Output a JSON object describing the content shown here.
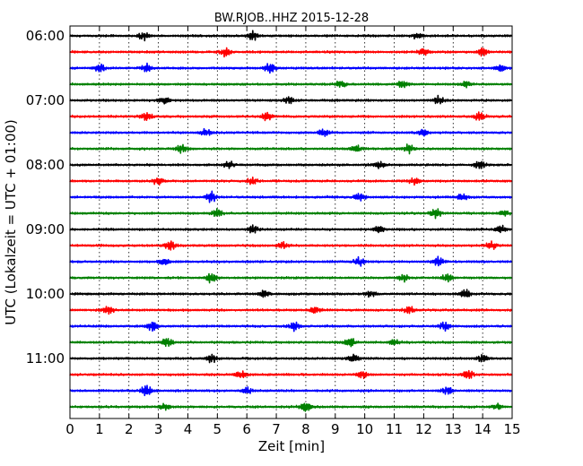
{
  "chart_data": {
    "type": "line",
    "title": "BW.RJOB..HHZ 2015-12-28",
    "xlabel": "Zeit  [min]",
    "ylabel": "UTC (Lokalzeit = UTC + 01:00)",
    "xlim": [
      0,
      15
    ],
    "x_ticks": [
      "0",
      "1",
      "2",
      "3",
      "4",
      "5",
      "6",
      "7",
      "8",
      "9",
      "10",
      "11",
      "12",
      "13",
      "14",
      "15"
    ],
    "y_tick_labels": [
      "06:00",
      "07:00",
      "08:00",
      "09:00",
      "10:00",
      "11:00"
    ],
    "grid": true,
    "start_time": "06:00",
    "trace_interval_min": 15,
    "trace_colors": [
      "#000000",
      "#ff0000",
      "#0000ff",
      "#008000"
    ],
    "series": [
      {
        "start": "06:00",
        "seed": 11,
        "color": "#000000",
        "bursts": [
          {
            "t": 2.5,
            "a": 0.9
          },
          {
            "t": 6.2,
            "a": 1.0
          },
          {
            "t": 11.8,
            "a": 0.8
          }
        ]
      },
      {
        "start": "06:15",
        "seed": 22,
        "color": "#ff0000",
        "bursts": [
          {
            "t": 5.3,
            "a": 1.0
          },
          {
            "t": 12.0,
            "a": 0.9
          },
          {
            "t": 14.0,
            "a": 0.9
          }
        ]
      },
      {
        "start": "06:30",
        "seed": 33,
        "color": "#0000ff",
        "bursts": [
          {
            "t": 1.0,
            "a": 1.0
          },
          {
            "t": 2.6,
            "a": 0.9
          },
          {
            "t": 6.8,
            "a": 1.2
          },
          {
            "t": 14.6,
            "a": 0.8
          }
        ]
      },
      {
        "start": "06:45",
        "seed": 44,
        "color": "#008000",
        "bursts": [
          {
            "t": 9.2,
            "a": 0.9
          },
          {
            "t": 11.3,
            "a": 0.8
          },
          {
            "t": 13.4,
            "a": 0.8
          }
        ]
      },
      {
        "start": "07:00",
        "seed": 55,
        "color": "#000000",
        "bursts": [
          {
            "t": 3.2,
            "a": 0.9
          },
          {
            "t": 7.4,
            "a": 0.8
          },
          {
            "t": 12.5,
            "a": 0.9
          }
        ]
      },
      {
        "start": "07:15",
        "seed": 66,
        "color": "#ff0000",
        "bursts": [
          {
            "t": 2.6,
            "a": 1.0
          },
          {
            "t": 6.7,
            "a": 1.0
          },
          {
            "t": 13.9,
            "a": 1.0
          }
        ]
      },
      {
        "start": "07:30",
        "seed": 77,
        "color": "#0000ff",
        "bursts": [
          {
            "t": 4.6,
            "a": 0.9
          },
          {
            "t": 8.6,
            "a": 0.9
          },
          {
            "t": 12.0,
            "a": 0.8
          }
        ]
      },
      {
        "start": "07:45",
        "seed": 88,
        "color": "#008000",
        "bursts": [
          {
            "t": 3.8,
            "a": 1.0
          },
          {
            "t": 9.7,
            "a": 0.8
          },
          {
            "t": 11.5,
            "a": 0.9
          }
        ]
      },
      {
        "start": "08:00",
        "seed": 99,
        "color": "#000000",
        "bursts": [
          {
            "t": 5.4,
            "a": 1.0
          },
          {
            "t": 10.5,
            "a": 0.8
          },
          {
            "t": 13.9,
            "a": 1.0
          }
        ]
      },
      {
        "start": "08:15",
        "seed": 110,
        "color": "#ff0000",
        "bursts": [
          {
            "t": 3.0,
            "a": 1.0
          },
          {
            "t": 6.2,
            "a": 0.8
          },
          {
            "t": 11.7,
            "a": 1.0
          }
        ]
      },
      {
        "start": "08:30",
        "seed": 121,
        "color": "#0000ff",
        "bursts": [
          {
            "t": 4.8,
            "a": 1.3
          },
          {
            "t": 9.8,
            "a": 0.9
          },
          {
            "t": 13.3,
            "a": 0.9
          }
        ]
      },
      {
        "start": "08:45",
        "seed": 132,
        "color": "#008000",
        "bursts": [
          {
            "t": 5.0,
            "a": 0.9
          },
          {
            "t": 12.4,
            "a": 1.2
          },
          {
            "t": 14.7,
            "a": 0.7
          }
        ]
      },
      {
        "start": "09:00",
        "seed": 143,
        "color": "#000000",
        "bursts": [
          {
            "t": 6.2,
            "a": 0.8
          },
          {
            "t": 10.5,
            "a": 0.8
          },
          {
            "t": 14.6,
            "a": 1.1
          }
        ]
      },
      {
        "start": "09:15",
        "seed": 154,
        "color": "#ff0000",
        "bursts": [
          {
            "t": 3.4,
            "a": 1.3
          },
          {
            "t": 7.2,
            "a": 0.9
          },
          {
            "t": 14.3,
            "a": 1.0
          }
        ]
      },
      {
        "start": "09:30",
        "seed": 165,
        "color": "#0000ff",
        "bursts": [
          {
            "t": 3.2,
            "a": 0.8
          },
          {
            "t": 9.8,
            "a": 1.0
          },
          {
            "t": 12.5,
            "a": 1.0
          }
        ]
      },
      {
        "start": "09:45",
        "seed": 176,
        "color": "#008000",
        "bursts": [
          {
            "t": 4.8,
            "a": 1.2
          },
          {
            "t": 11.3,
            "a": 0.8
          },
          {
            "t": 12.8,
            "a": 0.9
          }
        ]
      },
      {
        "start": "10:00",
        "seed": 187,
        "color": "#000000",
        "bursts": [
          {
            "t": 6.6,
            "a": 0.8
          },
          {
            "t": 10.2,
            "a": 0.8
          },
          {
            "t": 13.4,
            "a": 1.1
          }
        ]
      },
      {
        "start": "10:15",
        "seed": 198,
        "color": "#ff0000",
        "bursts": [
          {
            "t": 1.3,
            "a": 1.0
          },
          {
            "t": 8.3,
            "a": 0.9
          },
          {
            "t": 11.5,
            "a": 0.9
          }
        ]
      },
      {
        "start": "10:30",
        "seed": 209,
        "color": "#0000ff",
        "bursts": [
          {
            "t": 2.8,
            "a": 1.2
          },
          {
            "t": 7.6,
            "a": 0.9
          },
          {
            "t": 12.7,
            "a": 1.0
          }
        ]
      },
      {
        "start": "10:45",
        "seed": 220,
        "color": "#008000",
        "bursts": [
          {
            "t": 3.3,
            "a": 1.1
          },
          {
            "t": 9.5,
            "a": 1.3
          },
          {
            "t": 11.0,
            "a": 0.7
          }
        ]
      },
      {
        "start": "11:00",
        "seed": 231,
        "color": "#000000",
        "bursts": [
          {
            "t": 4.8,
            "a": 0.9
          },
          {
            "t": 9.6,
            "a": 1.0
          },
          {
            "t": 14.0,
            "a": 0.9
          }
        ]
      },
      {
        "start": "11:15",
        "seed": 242,
        "color": "#ff0000",
        "bursts": [
          {
            "t": 5.8,
            "a": 1.0
          },
          {
            "t": 9.9,
            "a": 0.8
          },
          {
            "t": 13.5,
            "a": 1.1
          }
        ]
      },
      {
        "start": "11:30",
        "seed": 253,
        "color": "#0000ff",
        "bursts": [
          {
            "t": 2.6,
            "a": 1.3
          },
          {
            "t": 6.0,
            "a": 0.8
          },
          {
            "t": 12.8,
            "a": 0.9
          }
        ]
      },
      {
        "start": "11:45",
        "seed": 264,
        "color": "#008000",
        "bursts": [
          {
            "t": 8.0,
            "a": 1.3
          },
          {
            "t": 3.2,
            "a": 0.8
          },
          {
            "t": 14.5,
            "a": 0.8
          }
        ]
      }
    ]
  }
}
